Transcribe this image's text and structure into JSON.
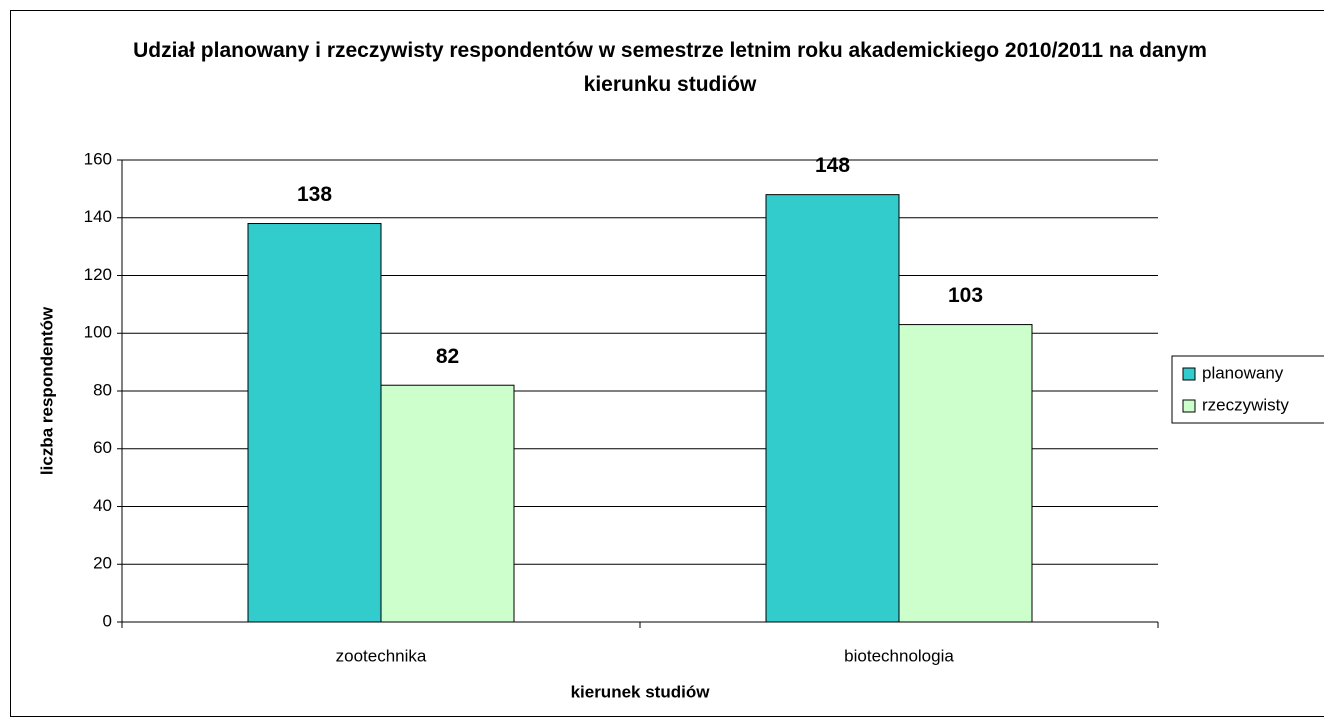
{
  "chart_data": {
    "type": "bar",
    "title": "Udział planowany i rzeczywisty respondentów w semestrze letnim roku akademickiego 2010/2011 na danym kierunku studiów",
    "x_label": "kierunek studiów",
    "y_label": "liczba respondentów",
    "categories": [
      "zootechnika",
      "biotechnologia"
    ],
    "series": [
      {
        "name": "planowany",
        "color": "#33cccc",
        "values": [
          138,
          148
        ]
      },
      {
        "name": "rzeczywisty",
        "color": "#ccffcc",
        "values": [
          82,
          103
        ]
      }
    ],
    "ylim": [
      0,
      160
    ],
    "yticks": [
      0,
      20,
      40,
      60,
      80,
      100,
      120,
      140,
      160
    ],
    "grid": true,
    "legend": "right"
  }
}
